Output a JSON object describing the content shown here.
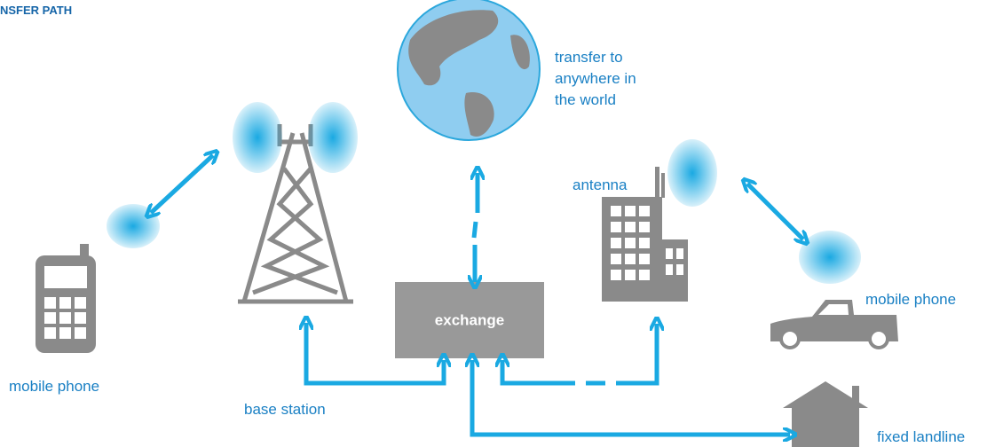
{
  "header": {
    "title": "NSFER PATH"
  },
  "nodes": [
    {
      "label": "transfer to",
      "label2": "anywhere in",
      "label3": "the world"
    },
    {
      "label": "antenna"
    },
    {
      "label": "mobile phone"
    },
    {
      "label": "mobile phone"
    },
    {
      "label": "exchange"
    },
    {
      "label": "base station"
    },
    {
      "label": "fixed landline"
    }
  ]
}
